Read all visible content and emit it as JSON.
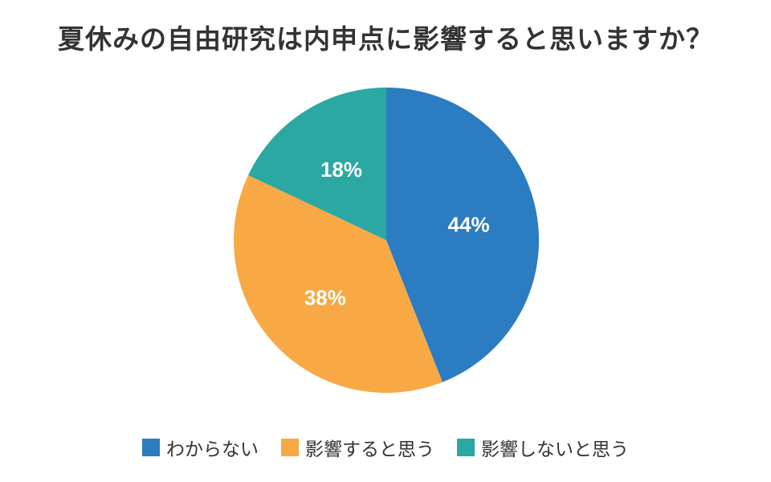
{
  "chart_data": {
    "type": "pie",
    "title": "夏休みの自由研究は内申点に影響すると思いますか？",
    "slices": [
      {
        "label": "わからない",
        "value": 44,
        "display": "44%",
        "color": "#2B7CC1"
      },
      {
        "label": "影響すると思う",
        "value": 38,
        "display": "38%",
        "color": "#F8A845"
      },
      {
        "label": "影響しないと思う",
        "value": 18,
        "display": "18%",
        "color": "#2BA8A2"
      }
    ],
    "legend_position": "bottom"
  }
}
